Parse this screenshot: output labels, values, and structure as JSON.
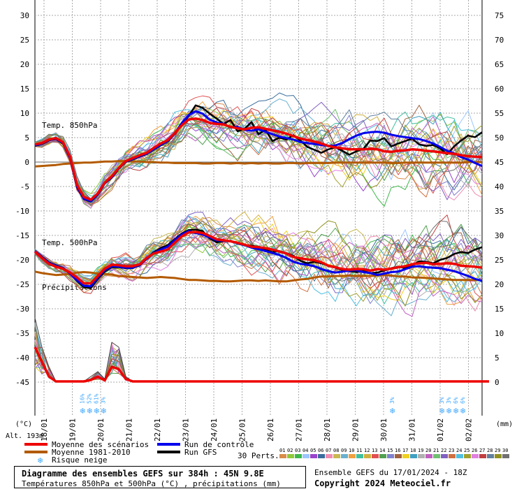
{
  "chart_data": {
    "type": "line",
    "left_axis": {
      "ticks": [
        30,
        25,
        20,
        15,
        10,
        5,
        0,
        -5,
        -10,
        -15,
        -20,
        -25,
        -30,
        -35,
        -40,
        -45
      ],
      "unit_label": "(°C)"
    },
    "right_axis": {
      "ticks": [
        75,
        70,
        65,
        60,
        55,
        50,
        45,
        40,
        35,
        30,
        25,
        20,
        15,
        10,
        5,
        0
      ],
      "unit_label": "(mm)"
    },
    "dates": [
      "18/01",
      "19/01",
      "20/01",
      "21/01",
      "22/01",
      "23/01",
      "24/01",
      "25/01",
      "26/01",
      "27/01",
      "28/01",
      "29/01",
      "30/01",
      "31/01",
      "01/02",
      "02/02"
    ],
    "panel_labels": {
      "t850": "Temp. 850hPa",
      "t500": "Temp. 500hPa",
      "precip": "Précipitations"
    },
    "altitude": "Alt. 193m",
    "t850": {
      "hours": [
        0,
        6,
        12,
        18,
        24,
        30,
        36,
        42,
        48,
        54,
        60,
        66,
        72,
        78,
        84,
        90,
        96,
        102,
        108,
        114,
        120,
        126,
        132,
        138,
        144,
        150,
        156,
        162,
        168,
        174,
        180,
        186,
        192,
        198,
        204,
        210,
        216,
        222,
        228,
        234,
        240,
        246,
        252,
        258,
        264,
        270,
        276,
        282,
        288,
        294,
        300,
        306,
        312,
        318,
        324,
        330,
        336,
        342,
        348,
        354,
        360,
        366,
        372,
        378,
        384
      ],
      "mean": [
        3.6,
        3.9,
        4.6,
        4.9,
        4.1,
        1.2,
        -4.6,
        -7.1,
        -7.7,
        -6.4,
        -4.2,
        -2.9,
        -1.2,
        0.2,
        0.8,
        1.4,
        1.9,
        2.9,
        3.8,
        4.5,
        5.9,
        7.5,
        8.7,
        8.9,
        8.6,
        8.0,
        7.8,
        7.7,
        7.2,
        6.9,
        6.7,
        7.0,
        7.1,
        6.8,
        6.5,
        6.2,
        5.8,
        5.3,
        4.8,
        4.5,
        4.2,
        3.8,
        3.3,
        3.0,
        2.8,
        2.6,
        2.6,
        2.6,
        2.7,
        2.6,
        2.2,
        2.1,
        2.3,
        2.4,
        2.6,
        2.5,
        2.3,
        2.2,
        2.0,
        1.8,
        1.7,
        1.4,
        1.2,
        1.1,
        1.0
      ],
      "control": [
        3.4,
        3.8,
        4.5,
        4.8,
        3.9,
        0.9,
        -4.9,
        -7.5,
        -8.0,
        -6.6,
        -4.3,
        -3.1,
        -1.3,
        0.1,
        0.6,
        1.2,
        1.7,
        2.6,
        3.5,
        4.3,
        5.8,
        7.9,
        9.6,
        10.4,
        9.9,
        8.7,
        8.1,
        7.8,
        7.1,
        7.2,
        6.6,
        6.4,
        6.7,
        6.2,
        5.7,
        5.2,
        4.9,
        4.6,
        4.1,
        3.9,
        3.7,
        3.5,
        3.3,
        3.4,
        3.9,
        4.7,
        5.4,
        5.9,
        6.1,
        6.2,
        6.0,
        5.6,
        5.3,
        5.1,
        4.9,
        4.7,
        4.3,
        3.8,
        3.1,
        2.3,
        1.8,
        1.0,
        0.5,
        -0.2,
        -0.8
      ],
      "gfs": [
        3.3,
        3.7,
        4.4,
        4.7,
        3.8,
        0.8,
        -5.1,
        -7.6,
        -8.1,
        -6.7,
        -4.4,
        -3.2,
        -1.4,
        0.0,
        0.5,
        1.1,
        1.6,
        2.5,
        3.4,
        4.2,
        5.7,
        7.6,
        9.4,
        11.6,
        11.1,
        9.9,
        8.9,
        7.8,
        8.6,
        6.3,
        6.8,
        8.2,
        5.7,
        6.6,
        4.3,
        5.0,
        4.6,
        5.5,
        4.4,
        3.1,
        2.5,
        1.9,
        2.6,
        3.0,
        2.3,
        1.5,
        2.2,
        2.7,
        4.4,
        4.3,
        4.9,
        3.2,
        3.8,
        4.3,
        4.8,
        3.6,
        3.3,
        3.5,
        2.8,
        1.6,
        3.2,
        4.4,
        5.4,
        5.1,
        6.1
      ]
    },
    "t850_clim": [
      -0.9,
      -0.8,
      -0.7,
      -0.6,
      -0.4,
      -0.3,
      -0.2,
      -0.1,
      -0.1,
      0.0,
      0.1,
      0.1,
      0.2,
      0.2,
      0.1,
      0.1,
      0.0,
      0.0,
      -0.1,
      -0.1,
      -0.2,
      -0.2,
      -0.2,
      -0.2,
      -0.3,
      -0.3,
      -0.2,
      -0.2,
      -0.3,
      -0.2,
      -0.3,
      -0.2,
      -0.3,
      -0.2,
      -0.3,
      -0.3,
      -0.2,
      -0.2,
      -0.3,
      -0.2,
      -0.2,
      -0.2,
      -0.2,
      -0.1,
      -0.1,
      -0.1,
      -0.1,
      -0.1,
      -0.1,
      -0.1,
      -0.1,
      -0.2,
      -0.2,
      -0.1,
      -0.1,
      -0.1,
      -0.1,
      -0.1,
      -0.1,
      -0.1,
      -0.1,
      -0.1,
      0.0,
      0.0,
      0.0
    ],
    "t500": {
      "mean": [
        -18.3,
        -19.6,
        -20.8,
        -21.4,
        -21.8,
        -22.6,
        -23.6,
        -24.8,
        -24.8,
        -23.3,
        -21.8,
        -21.0,
        -21.1,
        -21.3,
        -21.3,
        -20.9,
        -19.6,
        -18.7,
        -18.3,
        -17.9,
        -16.5,
        -15.2,
        -14.4,
        -14.3,
        -14.5,
        -15.1,
        -15.8,
        -16.0,
        -16.2,
        -16.5,
        -16.9,
        -17.3,
        -17.4,
        -17.6,
        -17.9,
        -18.3,
        -18.7,
        -19.4,
        -19.7,
        -19.9,
        -20.1,
        -20.5,
        -21.2,
        -21.5,
        -21.9,
        -22.0,
        -21.9,
        -21.9,
        -22.2,
        -21.9,
        -22.0,
        -21.8,
        -21.5,
        -21.3,
        -20.9,
        -20.7,
        -20.6,
        -20.9,
        -20.8,
        -20.7,
        -20.8,
        -21.2,
        -21.3,
        -21.4,
        -21.6
      ],
      "control": [
        -18.2,
        -19.4,
        -20.6,
        -21.2,
        -21.7,
        -22.8,
        -24.1,
        -25.3,
        -25.4,
        -23.6,
        -22.1,
        -21.3,
        -21.4,
        -21.6,
        -21.6,
        -21.0,
        -19.8,
        -18.6,
        -17.9,
        -17.3,
        -16.0,
        -14.8,
        -14.1,
        -14.5,
        -14.8,
        -15.4,
        -16.0,
        -16.1,
        -16.2,
        -16.6,
        -17.0,
        -17.5,
        -17.8,
        -18.2,
        -18.6,
        -19.0,
        -19.6,
        -20.4,
        -20.8,
        -21.0,
        -21.3,
        -21.9,
        -22.3,
        -22.6,
        -22.4,
        -22.2,
        -22.1,
        -22.5,
        -22.7,
        -23.1,
        -22.8,
        -22.5,
        -22.4,
        -21.9,
        -21.4,
        -21.3,
        -21.5,
        -21.6,
        -21.7,
        -22.0,
        -22.3,
        -22.8,
        -23.3,
        -23.9,
        -24.3
      ],
      "gfs": [
        -18.2,
        -19.3,
        -20.5,
        -21.1,
        -21.6,
        -22.7,
        -24.3,
        -25.6,
        -25.8,
        -23.9,
        -22.4,
        -21.5,
        -21.5,
        -21.7,
        -21.7,
        -21.1,
        -19.8,
        -18.4,
        -17.6,
        -17.0,
        -15.8,
        -14.6,
        -13.9,
        -13.8,
        -14.1,
        -15.6,
        -16.4,
        -16.2,
        -16.1,
        -16.7,
        -17.0,
        -17.1,
        -17.3,
        -18.0,
        -18.4,
        -18.2,
        -18.6,
        -19.2,
        -20.2,
        -20.7,
        -20.4,
        -20.7,
        -21.2,
        -21.6,
        -22.1,
        -22.3,
        -22.5,
        -22.3,
        -22.7,
        -22.6,
        -22.2,
        -21.7,
        -21.4,
        -21.7,
        -21.1,
        -20.3,
        -20.4,
        -20.7,
        -20.0,
        -19.6,
        -18.8,
        -18.4,
        -18.6,
        -17.9,
        -17.4
      ]
    },
    "t500_clim": [
      -22.4,
      -22.7,
      -22.9,
      -23.1,
      -23.0,
      -22.9,
      -22.6,
      -22.5,
      -22.6,
      -22.8,
      -22.9,
      -23.0,
      -23.3,
      -23.4,
      -23.5,
      -23.6,
      -23.7,
      -23.6,
      -23.5,
      -23.6,
      -23.7,
      -23.9,
      -24.1,
      -24.1,
      -24.2,
      -24.3,
      -24.3,
      -24.4,
      -24.4,
      -24.3,
      -24.2,
      -24.2,
      -24.3,
      -24.2,
      -24.3,
      -24.4,
      -24.4,
      -24.2,
      -24.0,
      -23.9,
      -23.6,
      -23.4,
      -23.4,
      -23.3,
      -23.3,
      -23.2,
      -23.3,
      -23.3,
      -23.3,
      -23.2,
      -23.1,
      -23.2,
      -23.4,
      -23.4,
      -23.6,
      -23.6,
      -23.7,
      -23.8,
      -23.9,
      -24.0,
      -24.1,
      -24.1,
      -24.1,
      -24.1,
      -24.1
    ],
    "precip_mm": {
      "max": [
        13,
        7,
        3,
        0,
        0,
        0,
        0,
        0,
        1,
        2,
        0.5,
        8,
        7,
        1,
        0,
        0,
        0,
        0,
        0,
        0,
        0,
        0,
        0,
        0,
        0,
        0,
        0,
        0,
        0,
        0,
        0,
        0,
        0,
        0,
        0,
        0,
        0,
        0,
        0,
        0,
        0,
        0,
        0,
        0,
        0,
        0,
        0,
        0,
        0,
        0,
        0,
        0,
        0,
        0,
        0,
        0,
        0,
        0,
        0,
        0,
        0,
        0,
        0,
        0,
        0
      ],
      "mean": [
        7,
        4,
        1,
        0,
        0,
        0,
        0,
        0,
        0.3,
        1,
        0.2,
        3,
        2.5,
        0.5,
        0,
        0,
        0,
        0,
        0,
        0,
        0,
        0,
        0,
        0,
        0,
        0,
        0,
        0,
        0,
        0,
        0,
        0,
        0,
        0,
        0,
        0,
        0,
        0,
        0,
        0,
        0,
        0,
        0,
        0,
        0,
        0,
        0,
        0,
        0,
        0,
        0,
        0,
        0,
        0,
        0,
        0,
        0,
        0,
        0,
        0,
        0,
        0,
        0,
        0,
        0,
        0
      ]
    },
    "snow_risk": [
      {
        "date_index": 1.35,
        "labels": [
          "16%",
          "52%",
          "61%",
          "3%"
        ]
      },
      {
        "date_index": 12.3,
        "labels": [
          "3%"
        ]
      },
      {
        "date_index": 14.05,
        "labels": [
          "3%",
          "3%",
          "6%",
          "6%"
        ]
      }
    ],
    "legend": {
      "mean": "Moyenne des scénarios",
      "clim": "Moyenne 1981-2010",
      "snow": "Risque neige",
      "control": "Run de contrôle",
      "gfs": "Run GFS",
      "perts_label": "30 Perts.",
      "perts": [
        "01",
        "02",
        "03",
        "04",
        "05",
        "06",
        "07",
        "08",
        "09",
        "10",
        "11",
        "12",
        "13",
        "14",
        "15",
        "16",
        "17",
        "18",
        "19",
        "20",
        "21",
        "22",
        "23",
        "24",
        "25",
        "26",
        "27",
        "28",
        "29",
        "30"
      ]
    },
    "colors": {
      "mean": "#ee0000",
      "clim": "#b35a00",
      "control": "#0000ee",
      "gfs": "#000000",
      "snow": "#44aaff",
      "perts": [
        "#d98c4a",
        "#8fc93a",
        "#3cb84a",
        "#9bc6ff",
        "#9944cc",
        "#3a6c9c",
        "#f08cb0",
        "#c8b850",
        "#6ab0d0",
        "#f0a040",
        "#40c0a0",
        "#d0b040",
        "#e05050",
        "#50a050",
        "#8080d0",
        "#a06040",
        "#f0d020",
        "#40a0c0",
        "#b0b0b0",
        "#c060c0",
        "#70c070",
        "#8060c0",
        "#d07040",
        "#50c0e0",
        "#a0a030",
        "#e080e0",
        "#c04040",
        "#6080a0",
        "#909020",
        "#707070"
      ]
    }
  },
  "footer": {
    "title": "Diagramme des ensembles GEFS sur 384h : 45N 9.8E",
    "subtitle": "Températures 850hPa et 500hPa (°C) , précipitations (mm)",
    "run_info": "Ensemble GEFS du 17/01/2024 - 18Z",
    "copyright": "Copyright 2024 Meteociel.fr"
  }
}
